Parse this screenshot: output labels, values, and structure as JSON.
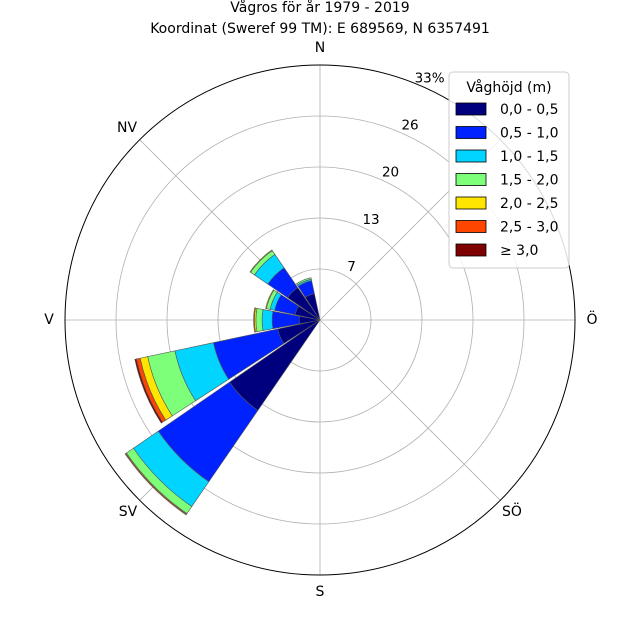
{
  "chart_data": {
    "type": "windrose",
    "title": "Vågros för år 1979 - 2019",
    "subtitle": "Koordinat (Sweref 99 TM): E 689569, N 6357491",
    "directions": [
      "N",
      "NV",
      "V",
      "SV",
      "S",
      "SÖ",
      "Ö"
    ],
    "radial_ticks": [
      "7",
      "13",
      "20",
      "26",
      "33%"
    ],
    "radial_tick_values": [
      6.6,
      13.2,
      19.8,
      26.4,
      33.0
    ],
    "rmax": 33,
    "legend": {
      "title": "Våghöjd (m)",
      "placement": "upper-right",
      "bins": [
        {
          "label": "0,0 - 0,5",
          "color": "#00007f"
        },
        {
          "label": "0,5 - 1,0",
          "color": "#0022ff"
        },
        {
          "label": "1,0 - 1,5",
          "color": "#00d4ff"
        },
        {
          "label": "1,5 - 2,0",
          "color": "#7dff7a"
        },
        {
          "label": "2,0 - 2,5",
          "color": "#ffe500"
        },
        {
          "label": "2,5 - 3,0",
          "color": "#ff4600"
        },
        {
          "label": "≥ 3,0",
          "color": "#7f0000"
        }
      ]
    },
    "sectors": [
      {
        "direction_deg": 337.5,
        "cumulative": [
          3.5,
          5.2,
          5.4,
          5.6,
          5.6,
          5.6,
          5.6
        ]
      },
      {
        "direction_deg": 315,
        "cumulative": [
          5.1,
          8.2,
          10.3,
          10.9,
          11.0,
          11.0,
          11.0
        ]
      },
      {
        "direction_deg": 292.5,
        "cumulative": [
          3.3,
          6.0,
          6.6,
          7.1,
          7.2,
          7.2,
          7.2
        ]
      },
      {
        "direction_deg": 270,
        "cumulative": [
          2.7,
          6.2,
          7.5,
          8.3,
          8.5,
          8.6,
          8.6
        ]
      },
      {
        "direction_deg": 247.5,
        "cumulative": [
          5.6,
          14.1,
          19.2,
          22.8,
          23.8,
          24.3,
          24.5
        ]
      },
      {
        "direction_deg": 225,
        "cumulative": [
          14.2,
          25.4,
          29.3,
          30.4,
          30.5,
          30.6,
          30.6
        ]
      }
    ]
  }
}
